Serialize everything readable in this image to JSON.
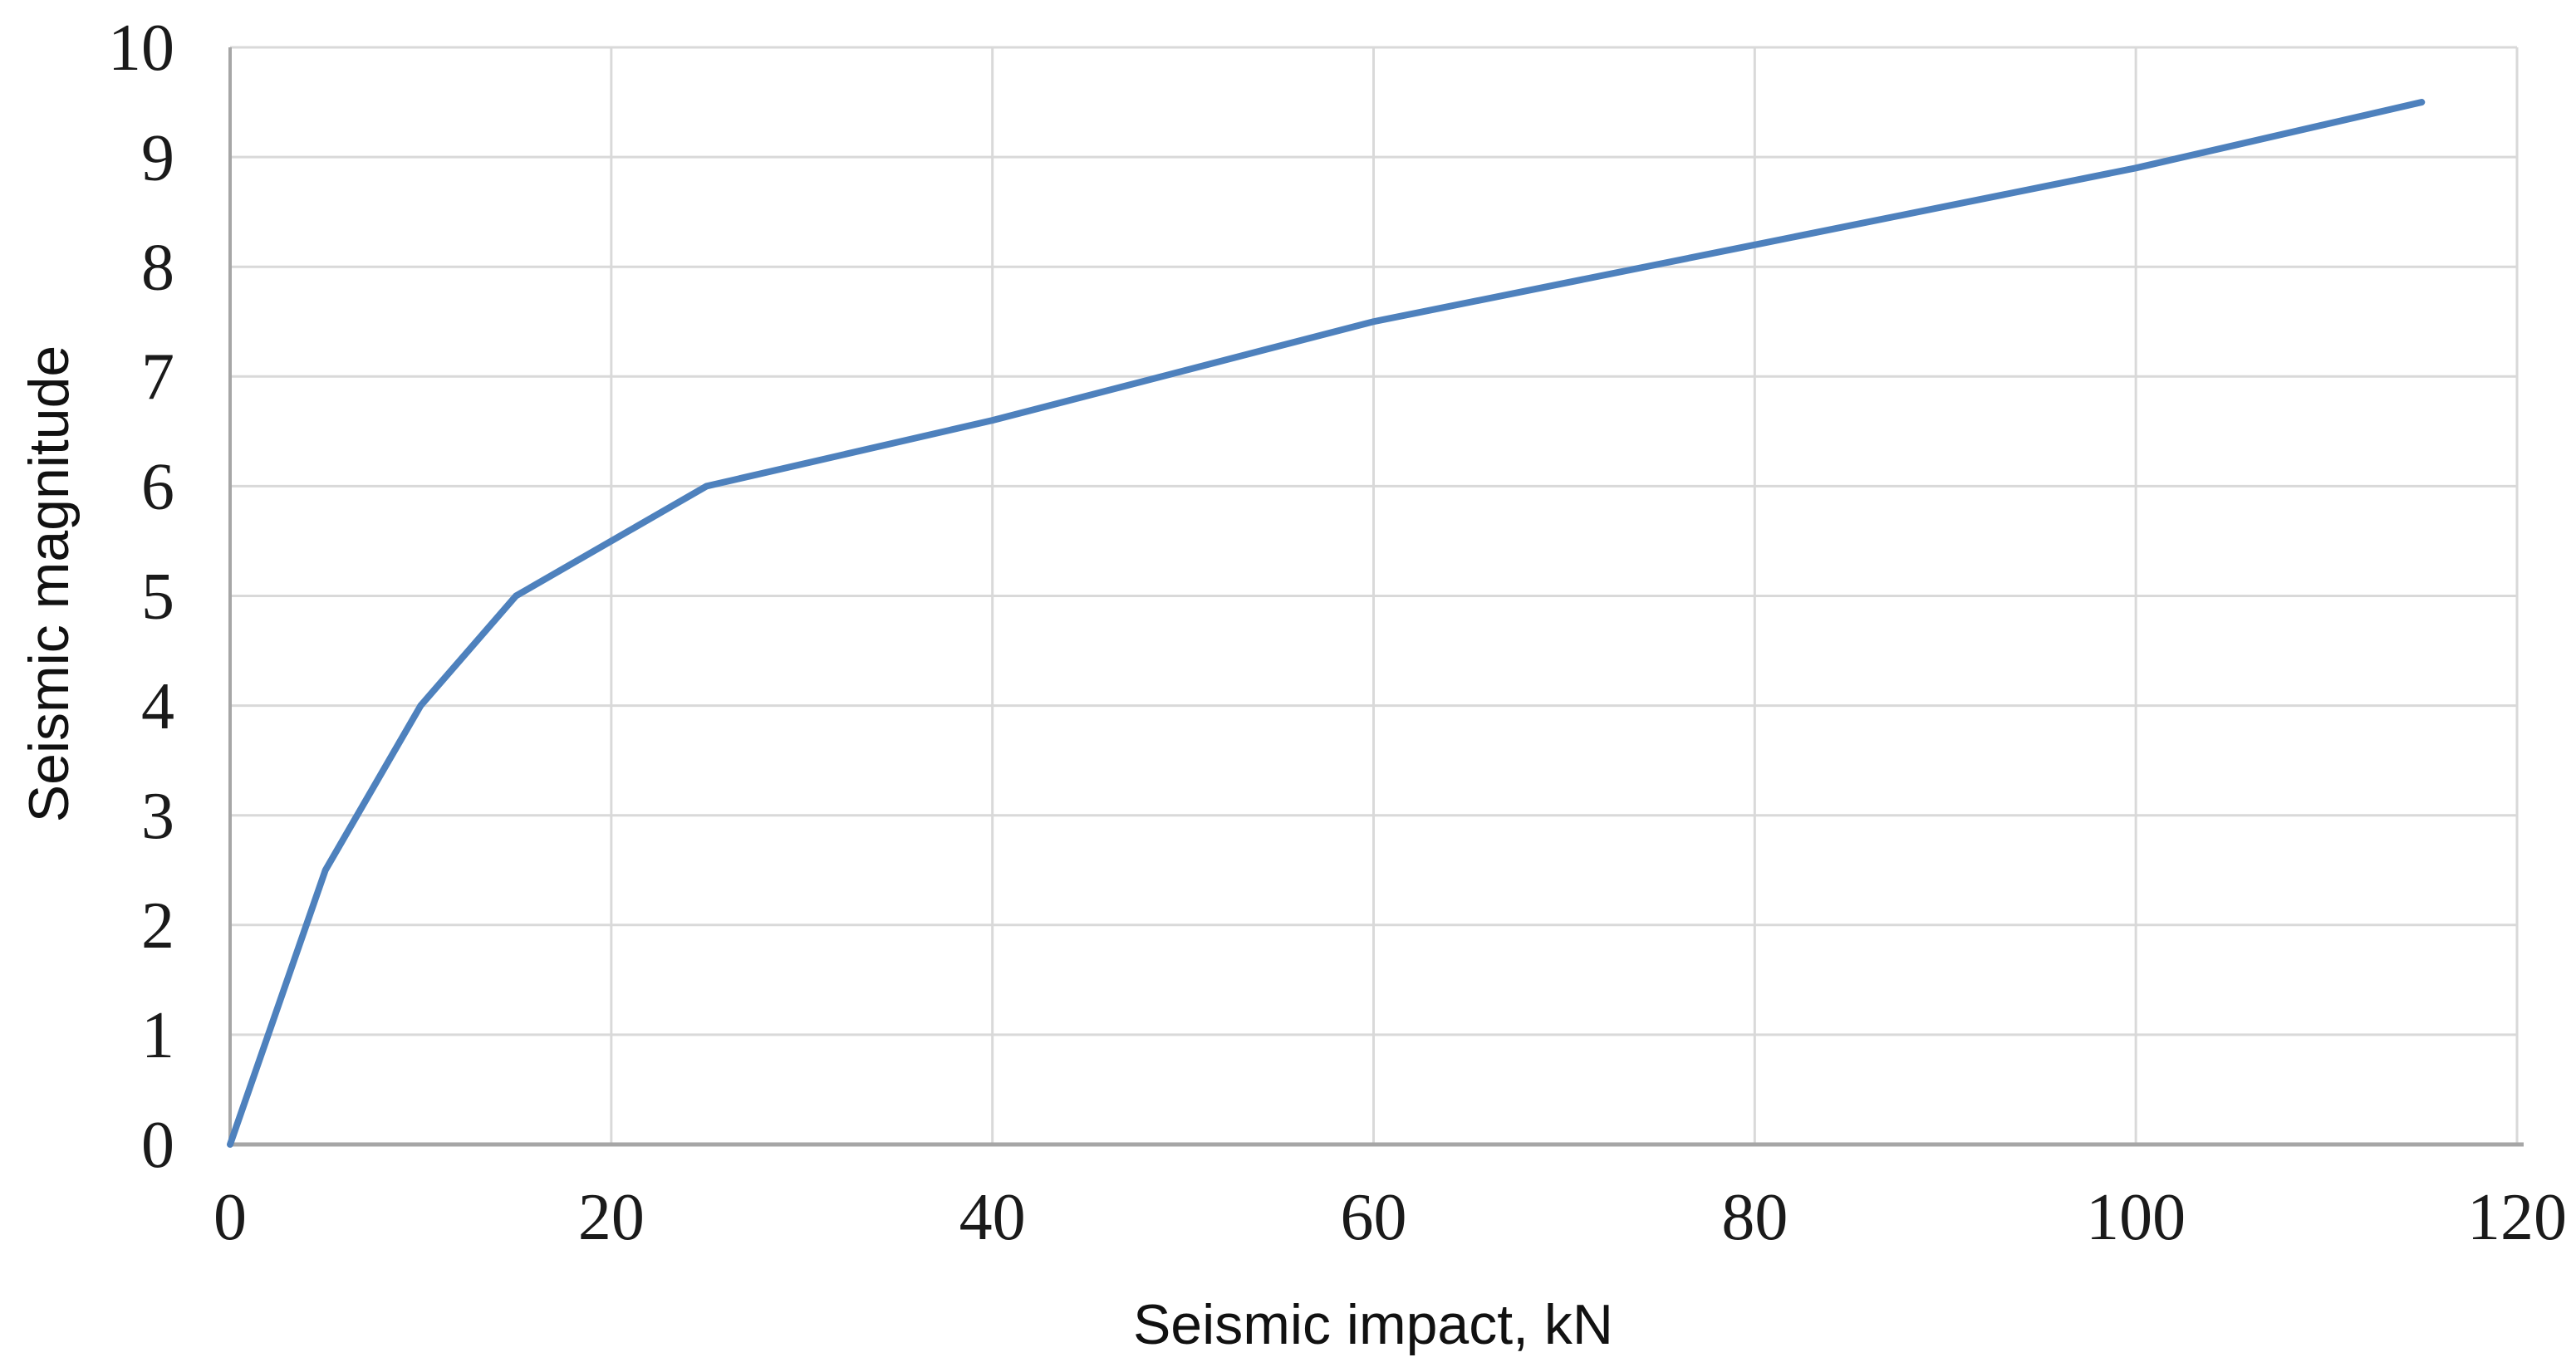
{
  "chart_data": {
    "type": "line",
    "title": "",
    "xlabel": "Seismic impact, kN",
    "ylabel": "Seismic magnitude",
    "x": [
      0,
      5,
      10,
      15,
      25,
      40,
      60,
      80,
      100,
      115
    ],
    "y": [
      0,
      2.5,
      4,
      5,
      6,
      6.6,
      7.5,
      8.2,
      8.9,
      9.5
    ],
    "xlim": [
      0,
      120
    ],
    "ylim": [
      0,
      10
    ],
    "x_ticks": [
      0,
      20,
      40,
      60,
      80,
      100,
      120
    ],
    "y_ticks": [
      0,
      1,
      2,
      3,
      4,
      5,
      6,
      7,
      8,
      9,
      10
    ],
    "grid": true,
    "legend_position": "none",
    "line_color": "#4E81BD",
    "gridline_color": "#D9D9D9",
    "axis_line_color": "#A6A6A6",
    "tick_label_color": "#1a1a1a",
    "background_color": "#FFFFFF"
  }
}
